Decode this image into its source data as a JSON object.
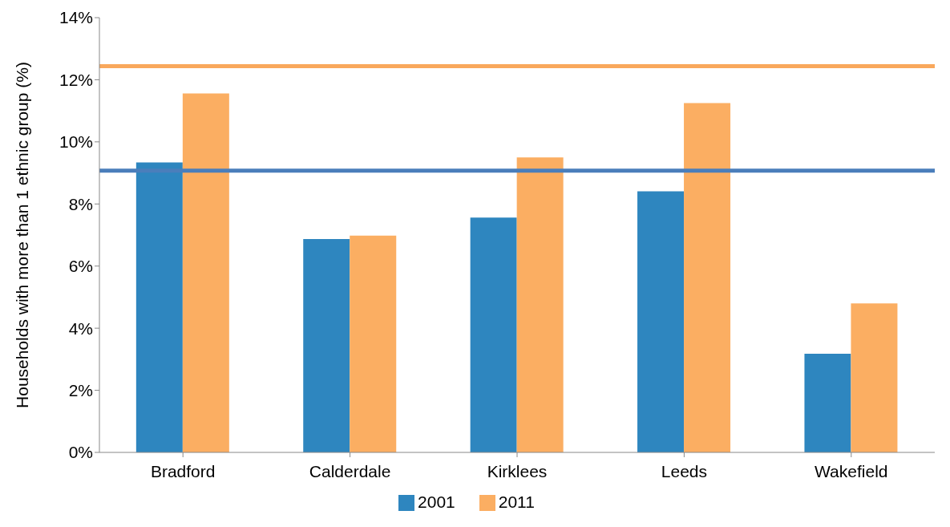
{
  "chart_data": {
    "type": "bar",
    "ylabel": "Households with more than 1 ethnic group (%)",
    "categories": [
      "Bradford",
      "Calderdale",
      "Kirklees",
      "Leeds",
      "Wakefield"
    ],
    "series": [
      {
        "name": "2001",
        "color": "#2e86bf",
        "values": [
          9.34,
          6.87,
          7.56,
          8.41,
          3.18
        ]
      },
      {
        "name": "2011",
        "color": "#fbae62",
        "values": [
          11.56,
          6.98,
          9.5,
          11.25,
          4.8
        ]
      }
    ],
    "ylim": [
      0,
      14
    ],
    "yticks": [
      {
        "value": 0,
        "label": "0%"
      },
      {
        "value": 2,
        "label": "2%"
      },
      {
        "value": 4,
        "label": "4%"
      },
      {
        "value": 6,
        "label": "6%"
      },
      {
        "value": 8,
        "label": "8%"
      },
      {
        "value": 10,
        "label": "10%"
      },
      {
        "value": 12,
        "label": "12%"
      },
      {
        "value": 14,
        "label": "14%"
      }
    ],
    "ref_lines": [
      {
        "axis": "y",
        "value": 12.44,
        "color": "#f9a85c"
      },
      {
        "axis": "y",
        "value": 9.07,
        "color": "#4a7ebb"
      }
    ],
    "grid": false,
    "legend": "bottom"
  }
}
